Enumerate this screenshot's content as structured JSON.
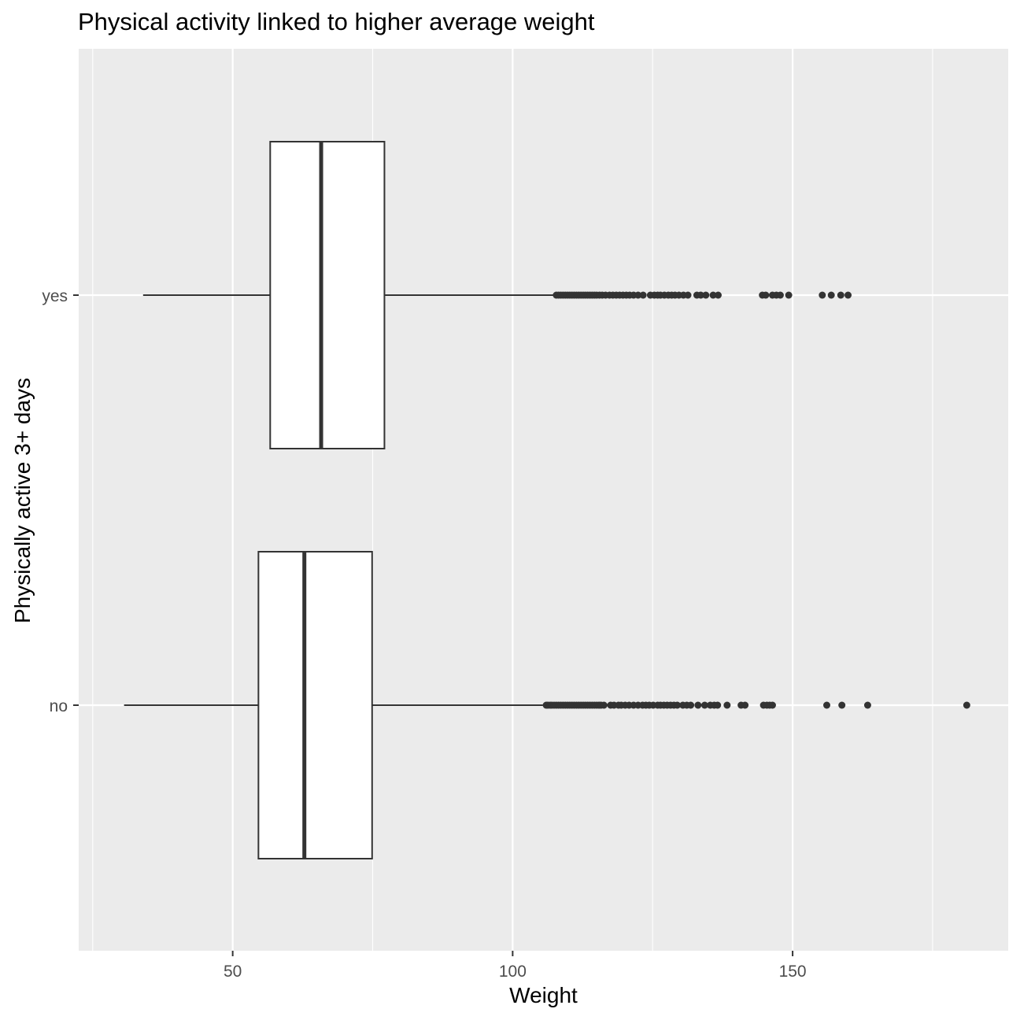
{
  "chart_data": {
    "type": "boxplot",
    "orientation": "horizontal",
    "title": "Physical activity linked to higher average weight",
    "xlabel": "Weight",
    "ylabel": "Physically active 3+ days",
    "xlim": [
      22.5,
      188.5
    ],
    "x_ticks": [
      50,
      100,
      150
    ],
    "x_minor_gridlines": [
      25,
      75,
      125,
      175
    ],
    "categories": [
      "no",
      "yes"
    ],
    "grid": true,
    "background": "#ebebeb",
    "grid_color": "#ffffff",
    "box_fill": "#ffffff",
    "line_color": "#333333",
    "outlier_color": "#333333",
    "series": [
      {
        "category": "no",
        "whisker_low": 30.6,
        "q1": 54.6,
        "median": 62.8,
        "q3": 74.9,
        "whisker_high": 105.4,
        "outliers": [
          106,
          106.3,
          106.7,
          107,
          107.4,
          107.8,
          108.2,
          108.6,
          109,
          109.4,
          109.8,
          110.2,
          110.6,
          111,
          111.4,
          111.8,
          112.2,
          112.6,
          113,
          113.4,
          113.8,
          114.2,
          114.6,
          115,
          115.4,
          115.8,
          116.3,
          117.5,
          118.1,
          118.9,
          119.4,
          120.1,
          120.8,
          121.6,
          122.4,
          123.2,
          123.8,
          124.4,
          125.1,
          125.9,
          126.4,
          127,
          127.6,
          128.2,
          128.8,
          129.4,
          130.4,
          131.1,
          131.8,
          133.1,
          134.3,
          135.3,
          136,
          136.6,
          138.3,
          140.8,
          141.5,
          144.8,
          145.4,
          145.9,
          146.4,
          156.1,
          158.8,
          163.4,
          181.1
        ]
      },
      {
        "category": "yes",
        "whisker_low": 34,
        "q1": 56.7,
        "median": 65.8,
        "q3": 77.1,
        "whisker_high": 107.2,
        "outliers": [
          107.8,
          108.2,
          108.6,
          109,
          109.4,
          109.8,
          110.2,
          110.6,
          111,
          111.4,
          111.8,
          112.2,
          112.6,
          113,
          113.4,
          113.8,
          114.2,
          114.6,
          115,
          115.5,
          116,
          116.6,
          117.3,
          117.9,
          118.5,
          119.1,
          119.7,
          120.3,
          120.9,
          121.6,
          122.4,
          123.3,
          124.6,
          125.3,
          125.9,
          126.4,
          127.1,
          127.8,
          128.4,
          129,
          129.7,
          130.5,
          131.3,
          132.9,
          133.6,
          134.5,
          135.8,
          136.7,
          144.6,
          145.2,
          146.4,
          147.1,
          147.8,
          149.3,
          155.3,
          156.9,
          158.6,
          159.9
        ]
      }
    ]
  }
}
